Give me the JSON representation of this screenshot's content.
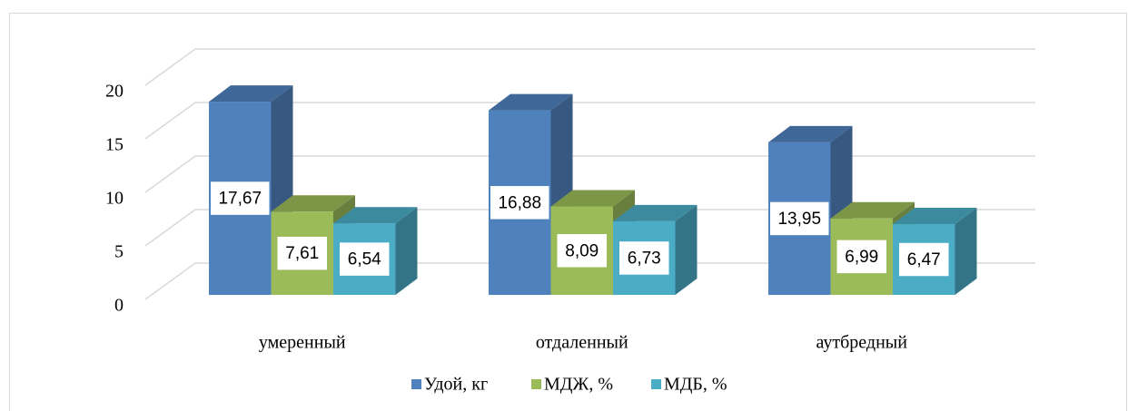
{
  "chart_data": {
    "type": "bar3d",
    "categories": [
      "умеренный",
      "отдаленный",
      "аутбредный"
    ],
    "series": [
      {
        "name": "Удой, кг",
        "color": "#4f81bd",
        "values": [
          17.67,
          16.88,
          13.95
        ],
        "value_labels": [
          "17,67",
          "16,88",
          "13,95"
        ]
      },
      {
        "name": "МДЖ, %",
        "color": "#9bbb59",
        "values": [
          7.61,
          8.09,
          6.99
        ],
        "value_labels": [
          "7,61",
          "8,09",
          "6,99"
        ]
      },
      {
        "name": "МДБ, %",
        "color": "#4bacc6",
        "values": [
          6.54,
          6.73,
          6.47
        ],
        "value_labels": [
          "6,54",
          "6,73",
          "6,47"
        ]
      }
    ],
    "ylim": [
      0,
      20
    ],
    "yticks": [
      0,
      5,
      10,
      15,
      20
    ],
    "grid": true,
    "legend": "bottom"
  }
}
